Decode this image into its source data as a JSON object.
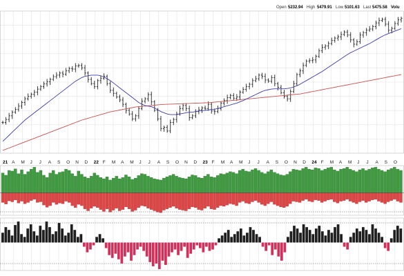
{
  "header": {
    "open_label": "Open",
    "open_value": "5232.94",
    "high_label": "High",
    "high_value": "5479.91",
    "low_label": "Low",
    "low_value": "5101.63",
    "last_label": "Last",
    "last_value": "5475.58",
    "volume_label": "Volu"
  },
  "colors": {
    "price_bar": "#222222",
    "ma_short": "#3b3bb0",
    "ma_long": "#c8504f",
    "upper_pos": "#3f9b3f",
    "upper_neg": "#e04545",
    "lower_pos": "#1e1e1e",
    "lower_neg": "#d0305a",
    "grid": "#e3e3e3",
    "dotted": "#555555"
  },
  "chart_data": [
    {
      "type": "ohlc",
      "panel": "price",
      "x_labels": [
        "21",
        "A",
        "M",
        "J",
        "J",
        "A",
        "S",
        "O",
        "N",
        "D",
        "22",
        "F",
        "M",
        "A",
        "M",
        "J",
        "J",
        "A",
        "S",
        "O",
        "N",
        "D",
        "23",
        "F",
        "M",
        "A",
        "M",
        "J",
        "J",
        "A",
        "S",
        "O",
        "N",
        "D",
        "24",
        "F",
        "M",
        "A",
        "M",
        "J",
        "J",
        "A",
        "S",
        "O"
      ],
      "close": [
        3760,
        3810,
        3870,
        3930,
        3975,
        4030,
        4090,
        4150,
        4190,
        4225,
        4260,
        4310,
        4350,
        4395,
        4430,
        4470,
        4515,
        4540,
        4575,
        4555,
        4610,
        4650,
        4640,
        4690,
        4700,
        4660,
        4575,
        4470,
        4400,
        4350,
        4450,
        4490,
        4520,
        4400,
        4290,
        4240,
        4180,
        4130,
        4060,
        3960,
        3900,
        3820,
        3870,
        3990,
        4110,
        4150,
        4220,
        4100,
        3960,
        3820,
        3660,
        3680,
        3620,
        3760,
        3810,
        3900,
        3990,
        4040,
        3990,
        3840,
        3870,
        3940,
        3970,
        4000,
        3990,
        4060,
        3950,
        3940,
        3990,
        4080,
        4120,
        4170,
        4205,
        4160,
        4180,
        4260,
        4305,
        4350,
        4390,
        4450,
        4480,
        4540,
        4520,
        4460,
        4440,
        4500,
        4400,
        4340,
        4250,
        4190,
        4150,
        4270,
        4400,
        4550,
        4610,
        4700,
        4770,
        4780,
        4790,
        4850,
        4940,
        5000,
        5020,
        5060,
        5110,
        5150,
        5170,
        5210,
        5250,
        5200,
        5120,
        5050,
        5090,
        5200,
        5240,
        5280,
        5300,
        5340,
        5400,
        5440,
        5460,
        5380,
        5280,
        5310,
        5390,
        5450,
        5475
      ],
      "ma_short": [
        3450,
        3500,
        3550,
        3600,
        3650,
        3700,
        3750,
        3800,
        3840,
        3880,
        3920,
        3960,
        4000,
        4040,
        4080,
        4120,
        4160,
        4200,
        4240,
        4280,
        4320,
        4360,
        4400,
        4440,
        4470,
        4500,
        4520,
        4530,
        4540,
        4540,
        4540,
        4530,
        4510,
        4480,
        4450,
        4410,
        4370,
        4330,
        4290,
        4250,
        4210,
        4170,
        4130,
        4090,
        4060,
        4040,
        4030,
        4020,
        4000,
        3970,
        3940,
        3920,
        3900,
        3890,
        3890,
        3890,
        3900,
        3910,
        3920,
        3930,
        3930,
        3940,
        3950,
        3955,
        3960,
        3965,
        3975,
        3980,
        3990,
        4005,
        4020,
        4035,
        4050,
        4065,
        4080,
        4100,
        4120,
        4145,
        4170,
        4195,
        4220,
        4245,
        4270,
        4290,
        4300,
        4310,
        4315,
        4315,
        4315,
        4315,
        4320,
        4330,
        4345,
        4365,
        4390,
        4420,
        4450,
        4480,
        4510,
        4540,
        4570,
        4600,
        4635,
        4670,
        4705,
        4740,
        4775,
        4810,
        4845,
        4880,
        4910,
        4935,
        4960,
        4985,
        5010,
        5035,
        5060,
        5090,
        5120,
        5150,
        5180,
        5205,
        5225,
        5245,
        5265,
        5285,
        5305
      ],
      "ma_long": [
        3300,
        3320,
        3340,
        3360,
        3380,
        3400,
        3420,
        3440,
        3460,
        3480,
        3500,
        3520,
        3540,
        3560,
        3580,
        3600,
        3620,
        3640,
        3660,
        3680,
        3700,
        3720,
        3740,
        3760,
        3780,
        3800,
        3815,
        3830,
        3845,
        3860,
        3875,
        3890,
        3905,
        3920,
        3935,
        3945,
        3955,
        3965,
        3975,
        3985,
        3995,
        4005,
        4015,
        4020,
        4025,
        4030,
        4035,
        4040,
        4045,
        4050,
        4055,
        4058,
        4060,
        4062,
        4064,
        4066,
        4068,
        4070,
        4072,
        4074,
        4076,
        4078,
        4080,
        4082,
        4084,
        4086,
        4090,
        4095,
        4100,
        4105,
        4110,
        4115,
        4120,
        4125,
        4130,
        4135,
        4140,
        4145,
        4150,
        4155,
        4160,
        4165,
        4170,
        4175,
        4180,
        4185,
        4190,
        4195,
        4200,
        4205,
        4210,
        4215,
        4220,
        4225,
        4230,
        4240,
        4250,
        4260,
        4270,
        4280,
        4290,
        4300,
        4310,
        4320,
        4330,
        4340,
        4350,
        4360,
        4370,
        4380,
        4390,
        4400,
        4410,
        4420,
        4430,
        4440,
        4450,
        4460,
        4470,
        4480,
        4490,
        4500,
        4510,
        4520,
        4530,
        4540,
        4550
      ],
      "y_range": [
        3300,
        5550
      ]
    },
    {
      "type": "histogram",
      "panel": "breadth",
      "positive": [
        62,
        55,
        70,
        68,
        75,
        60,
        72,
        58,
        66,
        74,
        80,
        64,
        70,
        55,
        48,
        62,
        70,
        58,
        64,
        66,
        74,
        70,
        60,
        52,
        68,
        58,
        50,
        46,
        52,
        62,
        55,
        48,
        44,
        50,
        40,
        46,
        52,
        44,
        48,
        56,
        50,
        42,
        46,
        54,
        60,
        58,
        52,
        48,
        44,
        42,
        40,
        46,
        50,
        54,
        58,
        52,
        48,
        46,
        44,
        50,
        56,
        54,
        48,
        46,
        52,
        58,
        50,
        48,
        54,
        60,
        58,
        62,
        66,
        64,
        60,
        70,
        74,
        68,
        66,
        72,
        76,
        70,
        64,
        60,
        66,
        72,
        64,
        60,
        56,
        54,
        58,
        66,
        74,
        72,
        70,
        76,
        80,
        74,
        72,
        78,
        76,
        70,
        74,
        78,
        80,
        72,
        68,
        74,
        76,
        80,
        74,
        70,
        66,
        72,
        76,
        70,
        74,
        78,
        80,
        74,
        70,
        66,
        72,
        76,
        80,
        74,
        70
      ],
      "negative": [
        -30,
        -35,
        -25,
        -28,
        -22,
        -32,
        -26,
        -34,
        -30,
        -24,
        -20,
        -30,
        -28,
        -38,
        -45,
        -40,
        -30,
        -36,
        -32,
        -34,
        -26,
        -30,
        -40,
        -46,
        -36,
        -40,
        -50,
        -56,
        -48,
        -42,
        -46,
        -52,
        -58,
        -50,
        -60,
        -54,
        -48,
        -56,
        -52,
        -44,
        -50,
        -58,
        -54,
        -46,
        -40,
        -42,
        -48,
        -52,
        -56,
        -60,
        -62,
        -54,
        -50,
        -46,
        -42,
        -48,
        -52,
        -54,
        -56,
        -50,
        -44,
        -46,
        -52,
        -54,
        -48,
        -42,
        -50,
        -52,
        -46,
        -40,
        -42,
        -38,
        -34,
        -36,
        -40,
        -30,
        -26,
        -32,
        -34,
        -28,
        -24,
        -30,
        -36,
        -40,
        -34,
        -28,
        -36,
        -40,
        -44,
        -46,
        -42,
        -34,
        -26,
        -28,
        -30,
        -24,
        -20,
        -26,
        -28,
        -22,
        -24,
        -30,
        -26,
        -22,
        -20,
        -28,
        -32,
        -26,
        -24,
        -20,
        -26,
        -30,
        -34,
        -28,
        -24,
        -30,
        -26,
        -22,
        -20,
        -26,
        -30,
        -34,
        -28,
        -24,
        -20,
        -26,
        -30
      ],
      "y_range": [
        -70,
        85
      ]
    },
    {
      "type": "histogram",
      "panel": "oscillator",
      "values": [
        14,
        22,
        18,
        10,
        25,
        30,
        12,
        8,
        20,
        26,
        16,
        10,
        24,
        18,
        30,
        22,
        12,
        16,
        28,
        20,
        10,
        14,
        26,
        18,
        8,
        12,
        -6,
        -14,
        -10,
        -4,
        8,
        12,
        6,
        -8,
        -18,
        -22,
        -16,
        -24,
        -30,
        -20,
        -14,
        -26,
        -18,
        -10,
        -6,
        -12,
        -20,
        -28,
        -34,
        -30,
        -38,
        -26,
        -32,
        -20,
        -14,
        -10,
        -18,
        -12,
        -6,
        -22,
        -16,
        -10,
        -4,
        -8,
        -14,
        -6,
        -12,
        -10,
        -4,
        6,
        10,
        14,
        18,
        8,
        12,
        16,
        20,
        10,
        14,
        22,
        18,
        12,
        8,
        -6,
        -12,
        -4,
        -18,
        -10,
        -20,
        -26,
        -14,
        8,
        16,
        24,
        20,
        14,
        26,
        22,
        18,
        12,
        20,
        24,
        16,
        10,
        18,
        14,
        22,
        26,
        12,
        -6,
        -10,
        8,
        14,
        20,
        16,
        22,
        18,
        12,
        26,
        20,
        14,
        8,
        -8,
        -12,
        6,
        18,
        24,
        20
      ],
      "y_range": [
        -40,
        35
      ]
    }
  ]
}
